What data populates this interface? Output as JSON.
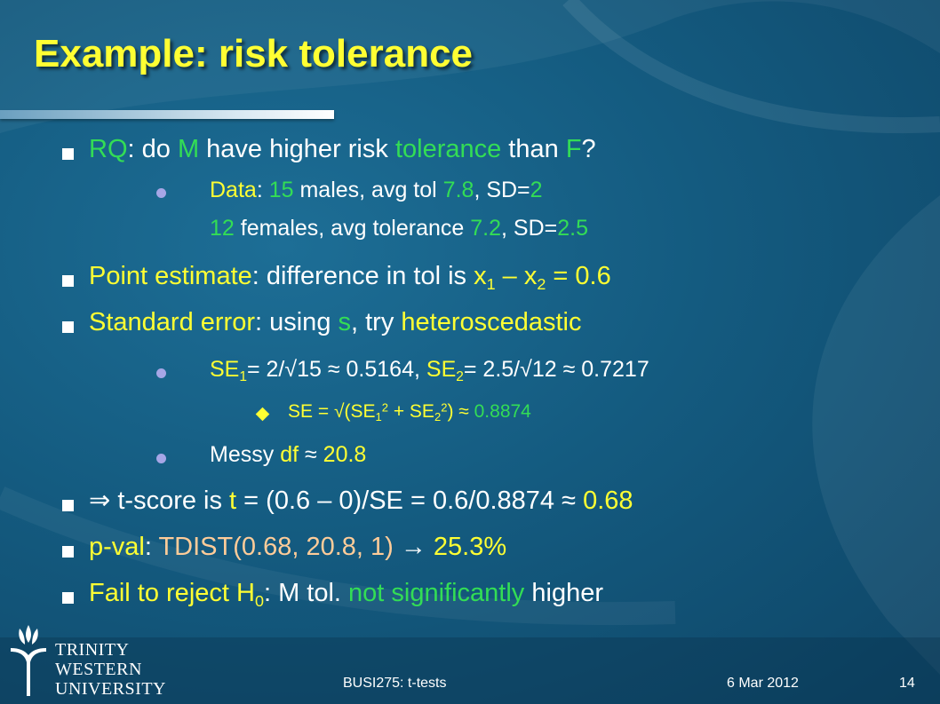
{
  "slide": {
    "title": "Example: risk tolerance",
    "content": {
      "rq": {
        "a": "RQ",
        "b": ": do ",
        "c": "M",
        "d": " have higher risk ",
        "e": "tolerance",
        "f": " than ",
        "g": "F",
        "h": "?"
      },
      "data1": {
        "a": "Data",
        "b": ": ",
        "c": "15",
        "d": " males, avg tol ",
        "e": "7.8",
        "f": ", SD=",
        "g": "2"
      },
      "data2": {
        "a": "12",
        "b": " females, avg tolerance ",
        "c": "7.2",
        "d": ", SD=",
        "e": "2.5"
      },
      "point": {
        "a": "Point estimate",
        "b": ": difference in tol is ",
        "c": "x",
        "c_sub": "1",
        "d": " – x",
        "d_sub": "2",
        "e": " = ",
        "f": "0.6"
      },
      "stderr": {
        "a": "Standard error",
        "b": ": using ",
        "c": "s",
        "d": ", try ",
        "e": "heteroscedastic"
      },
      "se": {
        "a": "SE",
        "a_sub": "1",
        "b": "= 2/√15 ≈ 0.5164, ",
        "c": "SE",
        "c_sub": "2",
        "d": "= 2.5/√12 ≈ 0.7217"
      },
      "setotal": {
        "a": "SE = √(SE",
        "a_sub": "1",
        "a_sup": "2",
        "b": " + SE",
        "b_sub": "2",
        "b_sup": "2",
        "c": ") ≈ ",
        "d": "0.8874"
      },
      "df": {
        "a": "Messy ",
        "b": "df",
        "c": " ≈ ",
        "d": "20.8"
      },
      "tscore": {
        "a": "⇒ t-score is ",
        "b": "t",
        "c": " = (0.6 – 0)/SE = 0.6/0.8874 ≈ ",
        "d": "0.68"
      },
      "pval": {
        "a": "p-val",
        "b": ": ",
        "c": "TDIST(0.68, 20.8, 1)",
        "d": " → ",
        "e": "25.3%"
      },
      "fail": {
        "a": "Fail to reject H",
        "a_sub": "0",
        "b": ": M tol. ",
        "c": "not significantly",
        "d": " higher"
      }
    }
  },
  "footer": {
    "course": "BUSI275: t-tests",
    "date": "6 Mar 2012",
    "page": "14"
  },
  "logo": {
    "line1": "TRINITY",
    "line2": "WESTERN",
    "line3": "UNIVERSITY"
  },
  "colors": {
    "title": "#ffff33",
    "highlight_green": "#33dd55",
    "highlight_yellow": "#ffff33",
    "highlight_peach": "#ffcc99",
    "background": "#145b80"
  },
  "icons": [
    "square-bullet-icon",
    "round-bullet-icon",
    "diamond-bullet-icon",
    "trinity-western-logo-icon"
  ]
}
